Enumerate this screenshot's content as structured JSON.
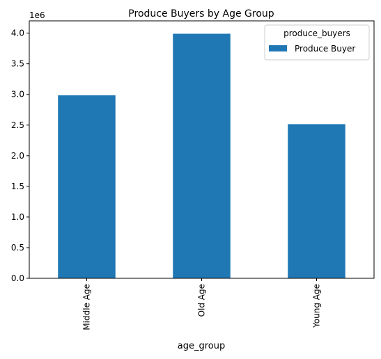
{
  "chart_data": {
    "type": "bar",
    "title": "Produce Buyers by Age Group",
    "xlabel": "age_group",
    "ylabel": "",
    "y_offset_label": "1e6",
    "categories": [
      "Middle Age",
      "Old Age",
      "Young Age"
    ],
    "series": [
      {
        "name": "Produce Buyer",
        "values": [
          2985000,
          3990000,
          2515000
        ]
      }
    ],
    "ylim": [
      0,
      4200000
    ],
    "yticks": [
      0.0,
      0.5,
      1.0,
      1.5,
      2.0,
      2.5,
      3.0,
      3.5,
      4.0
    ],
    "ytick_scale": 1000000,
    "legend": {
      "title": "produce_buyers",
      "position": "top-right"
    },
    "grid": false,
    "bar_color": "#1f77b4"
  }
}
